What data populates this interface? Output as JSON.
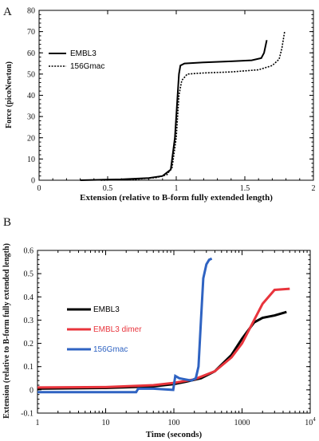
{
  "chart_data": [
    {
      "type": "line",
      "panel_label": "A",
      "xlabel": "Extension (relative to B-form fully extended length)",
      "ylabel": "Force (picoNewton)",
      "xlim": [
        0,
        2
      ],
      "ylim": [
        0,
        80
      ],
      "x_ticks": [
        "0",
        "0.5",
        "1",
        "1.5",
        "2"
      ],
      "y_ticks": [
        "0",
        "10",
        "20",
        "30",
        "40",
        "50",
        "60",
        "70",
        "80"
      ],
      "legend_position": "top-left",
      "series": [
        {
          "name": "EMBL3",
          "color": "#000000",
          "dash": "solid",
          "points": [
            [
              0.3,
              0
            ],
            [
              0.6,
              0.4
            ],
            [
              0.8,
              1.0
            ],
            [
              0.9,
              2.0
            ],
            [
              0.96,
              5
            ],
            [
              0.99,
              20
            ],
            [
              1.01,
              40
            ],
            [
              1.02,
              50
            ],
            [
              1.03,
              54
            ],
            [
              1.06,
              55
            ],
            [
              1.2,
              55.5
            ],
            [
              1.4,
              56
            ],
            [
              1.55,
              56.5
            ],
            [
              1.62,
              57.5
            ],
            [
              1.64,
              60
            ],
            [
              1.66,
              66
            ]
          ]
        },
        {
          "name": "156Gmac",
          "color": "#000000",
          "dash": "dotted",
          "points": [
            [
              0.45,
              0
            ],
            [
              0.7,
              0.4
            ],
            [
              0.85,
              1.2
            ],
            [
              0.93,
              2.5
            ],
            [
              0.97,
              6
            ],
            [
              1.0,
              20
            ],
            [
              1.02,
              40
            ],
            [
              1.04,
              47
            ],
            [
              1.08,
              50
            ],
            [
              1.2,
              50.5
            ],
            [
              1.4,
              51
            ],
            [
              1.6,
              52
            ],
            [
              1.7,
              54
            ],
            [
              1.75,
              57
            ],
            [
              1.77,
              62
            ],
            [
              1.79,
              70
            ]
          ]
        }
      ]
    },
    {
      "type": "line",
      "panel_label": "B",
      "xlabel": "Time (seconds)",
      "ylabel": "Extension (relative to B-form fully extended length)",
      "x_scale": "log",
      "xlim": [
        1,
        10000
      ],
      "ylim": [
        -0.1,
        0.6
      ],
      "x_ticks": [
        "1",
        "10",
        "100",
        "1000"
      ],
      "x_tick_last_base": "10",
      "x_tick_last_exp": "4",
      "y_ticks": [
        "-0.1",
        "0",
        "0.1",
        "0.2",
        "0.3",
        "0.4",
        "0.5",
        "0.6"
      ],
      "legend_position": "left",
      "series": [
        {
          "name": "EMBL3",
          "color": "#000000",
          "points": [
            [
              1,
              0.005
            ],
            [
              10,
              0.008
            ],
            [
              50,
              0.015
            ],
            [
              100,
              0.025
            ],
            [
              150,
              0.035
            ],
            [
              250,
              0.05
            ],
            [
              400,
              0.08
            ],
            [
              700,
              0.15
            ],
            [
              1000,
              0.22
            ],
            [
              1500,
              0.29
            ],
            [
              2000,
              0.31
            ],
            [
              3000,
              0.32
            ],
            [
              4500,
              0.335
            ]
          ]
        },
        {
          "name": "EMBL3 dimer",
          "color": "#e8343c",
          "points": [
            [
              1,
              0.01
            ],
            [
              10,
              0.012
            ],
            [
              50,
              0.02
            ],
            [
              100,
              0.03
            ],
            [
              200,
              0.045
            ],
            [
              400,
              0.08
            ],
            [
              700,
              0.14
            ],
            [
              1000,
              0.2
            ],
            [
              1500,
              0.3
            ],
            [
              2000,
              0.37
            ],
            [
              3000,
              0.43
            ],
            [
              5000,
              0.435
            ]
          ]
        },
        {
          "name": "156Gmac",
          "color": "#2f63c2",
          "points": [
            [
              1,
              -0.01
            ],
            [
              28,
              -0.01
            ],
            [
              30,
              0.005
            ],
            [
              50,
              0.005
            ],
            [
              98,
              0.0
            ],
            [
              105,
              0.06
            ],
            [
              120,
              0.05
            ],
            [
              180,
              0.04
            ],
            [
              210,
              0.05
            ],
            [
              230,
              0.1
            ],
            [
              250,
              0.3
            ],
            [
              270,
              0.48
            ],
            [
              300,
              0.54
            ],
            [
              330,
              0.56
            ],
            [
              360,
              0.565
            ]
          ]
        }
      ]
    }
  ]
}
